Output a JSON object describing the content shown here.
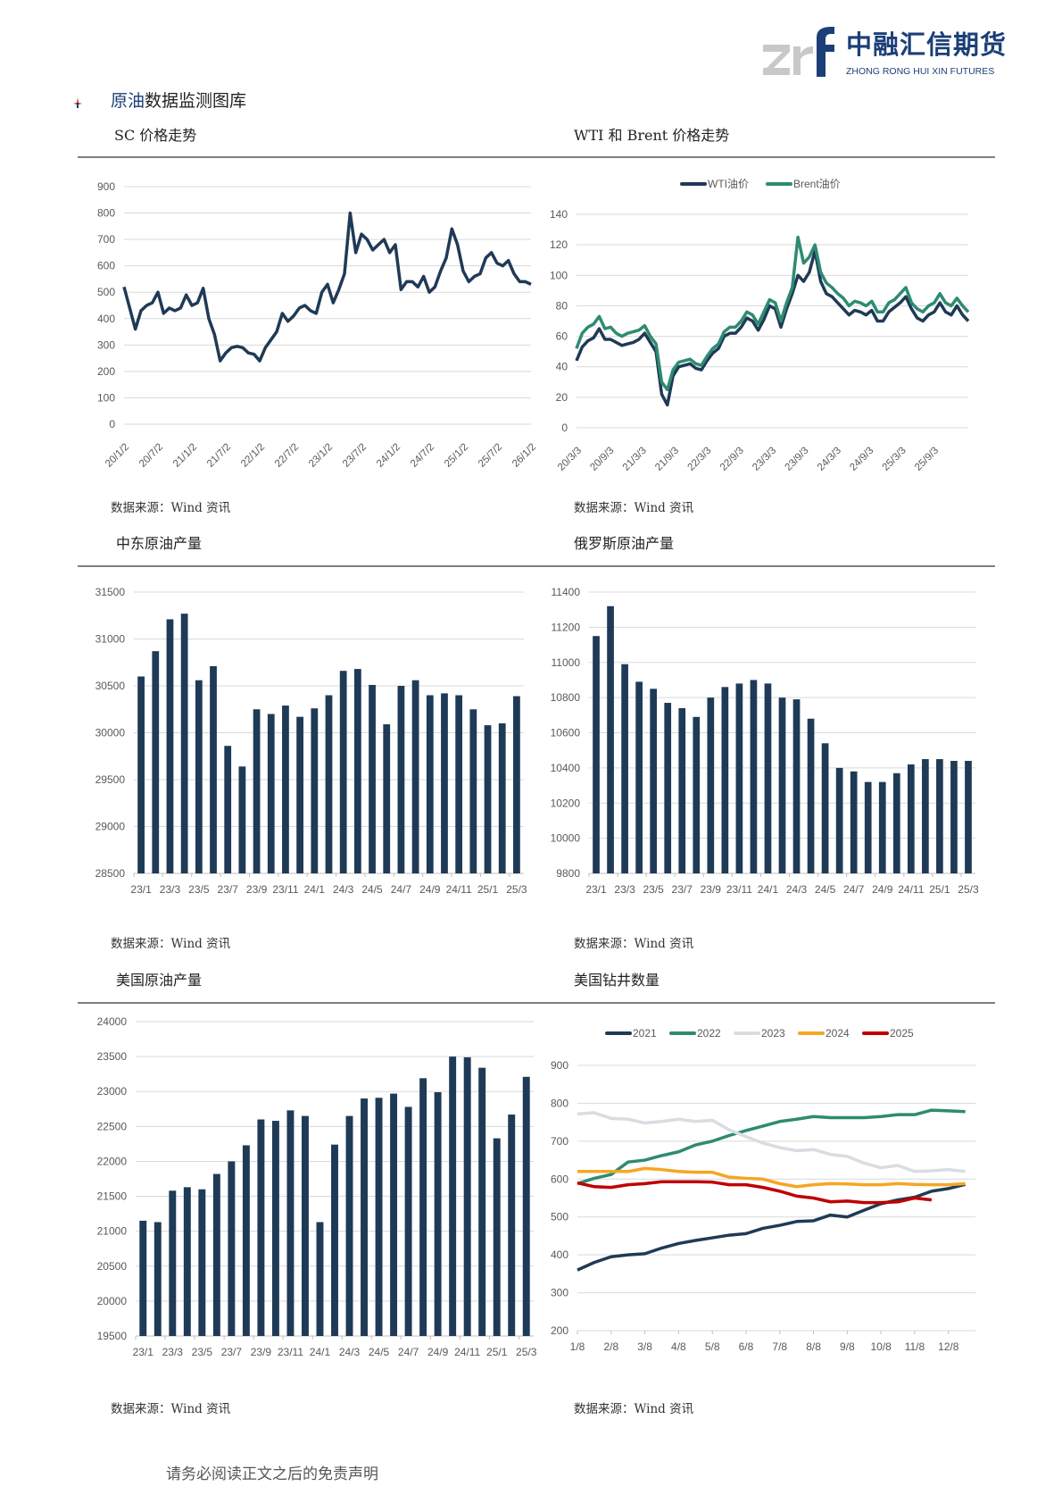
{
  "header": {
    "logo_letters": "zrf",
    "logo_cn": "中融汇信期货",
    "logo_en": "ZHONG RONG HUI XIN FUTURES",
    "section_title_a": "原油",
    "section_title_b": "数据监测图库"
  },
  "footer": {
    "disclaimer": "请务必阅读正文之后的免责声明"
  },
  "colors": {
    "navy": "#1f3a56",
    "teal": "#2e8b71",
    "gray": "#d9dde2",
    "orange": "#f5a623",
    "red": "#c00000",
    "grid": "#d9d9d9"
  },
  "chart_data": [
    {
      "id": "sc",
      "title": "SC 价格走势",
      "source": "数据来源：Wind 资讯",
      "type": "line",
      "ylim": [
        0,
        900
      ],
      "yticks": [
        0,
        100,
        200,
        300,
        400,
        500,
        600,
        700,
        800,
        900
      ],
      "grid": true,
      "x_labels": [
        "20/1/2",
        "20/7/2",
        "21/1/2",
        "21/7/2",
        "22/1/2",
        "22/7/2",
        "23/1/2",
        "23/7/2",
        "24/1/2",
        "24/7/2",
        "25/1/2",
        "25/7/2",
        "26/1/2"
      ],
      "series": [
        {
          "color": "#1f3a56",
          "values": [
            520,
            440,
            360,
            430,
            450,
            460,
            500,
            420,
            440,
            430,
            440,
            490,
            450,
            460,
            515,
            400,
            340,
            240,
            270,
            290,
            295,
            290,
            270,
            265,
            240,
            290,
            320,
            350,
            420,
            390,
            410,
            440,
            450,
            430,
            420,
            500,
            530,
            460,
            510,
            570,
            800,
            650,
            720,
            700,
            660,
            680,
            700,
            650,
            680,
            510,
            540,
            540,
            520,
            560,
            500,
            520,
            580,
            630,
            740,
            680,
            580,
            540,
            560,
            570,
            630,
            650,
            610,
            600,
            620,
            570,
            540,
            540,
            530
          ]
        }
      ]
    },
    {
      "id": "wti",
      "title": "WTI 和 Brent 价格走势",
      "source": "数据来源：Wind 资讯",
      "type": "line",
      "ylim": [
        0,
        140
      ],
      "yticks": [
        0,
        20,
        40,
        60,
        80,
        100,
        120,
        140
      ],
      "grid": true,
      "legend": "top",
      "x_labels": [
        "20/3/3",
        "20/9/3",
        "21/3/3",
        "21/9/3",
        "22/3/3",
        "22/9/3",
        "23/3/3",
        "23/9/3",
        "24/3/3",
        "24/9/3",
        "25/3/3",
        "25/9/3"
      ],
      "series": [
        {
          "name": "WTI油价",
          "color": "#1f3a56",
          "values": [
            44,
            53,
            57,
            59,
            65,
            58,
            58,
            56,
            54,
            55,
            56,
            58,
            62,
            56,
            50,
            22,
            15,
            34,
            40,
            41,
            42,
            39,
            38,
            44,
            49,
            52,
            60,
            62,
            62,
            66,
            72,
            70,
            64,
            71,
            80,
            78,
            66,
            78,
            88,
            100,
            96,
            102,
            116,
            96,
            88,
            86,
            82,
            78,
            74,
            77,
            76,
            74,
            77,
            70,
            70,
            76,
            79,
            82,
            86,
            78,
            72,
            70,
            74,
            76,
            82,
            76,
            74,
            80,
            74,
            70
          ]
        },
        {
          "name": "Brent油价",
          "color": "#2e8b71",
          "values": [
            52,
            62,
            66,
            68,
            73,
            65,
            66,
            62,
            60,
            62,
            63,
            64,
            67,
            60,
            55,
            30,
            25,
            38,
            43,
            44,
            45,
            42,
            41,
            47,
            52,
            55,
            63,
            66,
            66,
            70,
            76,
            74,
            68,
            76,
            84,
            82,
            70,
            82,
            92,
            125,
            108,
            112,
            120,
            102,
            95,
            92,
            88,
            85,
            80,
            83,
            82,
            80,
            83,
            76,
            76,
            82,
            84,
            88,
            92,
            82,
            78,
            76,
            80,
            82,
            88,
            82,
            80,
            85,
            80,
            76
          ]
        }
      ]
    },
    {
      "id": "me",
      "title": "中东原油产量",
      "source": "数据来源：Wind 资讯",
      "type": "bar",
      "ylim": [
        28500,
        31500
      ],
      "yticks": [
        28500,
        29000,
        29500,
        30000,
        30500,
        31000,
        31500
      ],
      "grid": true,
      "x_labels": [
        "23/1",
        "23/3",
        "23/5",
        "23/7",
        "23/9",
        "23/11",
        "24/1",
        "24/3",
        "24/5",
        "24/7",
        "24/9",
        "24/11",
        "25/1",
        "25/3"
      ],
      "values": [
        30600,
        30870,
        31210,
        31270,
        30560,
        30710,
        29860,
        29640,
        30250,
        30200,
        30290,
        30170,
        30260,
        30400,
        30660,
        30680,
        30510,
        30090,
        30500,
        30560,
        30400,
        30420,
        30400,
        30250,
        30080,
        30100,
        30390
      ]
    },
    {
      "id": "ru",
      "title": "俄罗斯原油产量",
      "source": "数据来源：Wind 资讯",
      "type": "bar",
      "ylim": [
        9800,
        11400
      ],
      "yticks": [
        9800,
        10000,
        10200,
        10400,
        10600,
        10800,
        11000,
        11200,
        11400
      ],
      "grid": true,
      "x_labels": [
        "23/1",
        "23/3",
        "23/5",
        "23/7",
        "23/9",
        "23/11",
        "24/1",
        "24/3",
        "24/5",
        "24/7",
        "24/9",
        "24/11",
        "25/1",
        "25/3"
      ],
      "values": [
        11150,
        11320,
        10990,
        10890,
        10850,
        10770,
        10740,
        10690,
        10800,
        10860,
        10880,
        10900,
        10880,
        10800,
        10790,
        10680,
        10540,
        10400,
        10380,
        10320,
        10320,
        10370,
        10420,
        10450,
        10450,
        10440,
        10440
      ]
    },
    {
      "id": "us",
      "title": "美国原油产量",
      "source": "数据来源：Wind 资讯",
      "type": "bar",
      "ylim": [
        19500,
        24000
      ],
      "yticks": [
        19500,
        20000,
        20500,
        21000,
        21500,
        22000,
        22500,
        23000,
        23500,
        24000
      ],
      "grid": true,
      "x_labels": [
        "23/1",
        "23/3",
        "23/5",
        "23/7",
        "23/9",
        "23/11",
        "24/1",
        "24/3",
        "24/5",
        "24/7",
        "24/9",
        "24/11",
        "25/1",
        "25/3"
      ],
      "values": [
        21150,
        21130,
        21580,
        21630,
        21600,
        21820,
        22000,
        22230,
        22600,
        22580,
        22730,
        22650,
        21130,
        22240,
        22650,
        22900,
        22910,
        22970,
        22780,
        23190,
        22990,
        23500,
        23490,
        23340,
        22330,
        22670,
        23210
      ]
    },
    {
      "id": "rig",
      "title": "美国钻井数量",
      "source": "数据来源：Wind 资讯",
      "type": "line",
      "ylim": [
        200,
        900
      ],
      "yticks": [
        200,
        300,
        400,
        500,
        600,
        700,
        800,
        900
      ],
      "grid": true,
      "legend": "top",
      "x_labels": [
        "1/8",
        "2/8",
        "3/8",
        "4/8",
        "5/8",
        "6/8",
        "7/8",
        "8/8",
        "9/8",
        "10/8",
        "11/8",
        "12/8"
      ],
      "series": [
        {
          "name": "2021",
          "color": "#1f3a56",
          "values": [
            360,
            380,
            395,
            400,
            403,
            418,
            430,
            438,
            445,
            452,
            456,
            470,
            478,
            488,
            490,
            505,
            500,
            518,
            535,
            545,
            552,
            568,
            575,
            586
          ]
        },
        {
          "name": "2022",
          "color": "#2e8b71",
          "values": [
            588,
            602,
            612,
            645,
            650,
            662,
            672,
            690,
            700,
            715,
            728,
            740,
            752,
            758,
            765,
            762,
            762,
            762,
            765,
            770,
            770,
            782,
            780,
            778
          ]
        },
        {
          "name": "2023",
          "color": "#d9dde2",
          "values": [
            772,
            775,
            760,
            758,
            748,
            752,
            758,
            752,
            755,
            730,
            712,
            695,
            683,
            675,
            678,
            665,
            660,
            642,
            630,
            636,
            620,
            622,
            625,
            620
          ]
        },
        {
          "name": "2024",
          "color": "#f5a623",
          "values": [
            620,
            620,
            620,
            620,
            628,
            625,
            620,
            618,
            618,
            605,
            602,
            600,
            588,
            580,
            585,
            588,
            587,
            585,
            585,
            588,
            586,
            585,
            585,
            588
          ]
        },
        {
          "name": "2025",
          "color": "#c00000",
          "values": [
            590,
            580,
            578,
            585,
            588,
            593,
            593,
            593,
            592,
            585,
            585,
            578,
            568,
            555,
            550,
            540,
            542,
            538,
            538,
            540,
            550,
            545
          ]
        }
      ]
    }
  ]
}
